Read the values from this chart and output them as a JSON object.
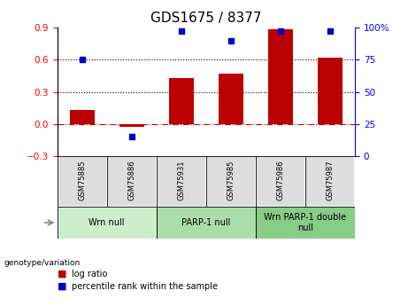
{
  "title": "GDS1675 / 8377",
  "samples": [
    "GSM75885",
    "GSM75886",
    "GSM75931",
    "GSM75985",
    "GSM75986",
    "GSM75987"
  ],
  "log_ratios": [
    0.13,
    -0.03,
    0.43,
    0.47,
    0.88,
    0.62
  ],
  "percentile_ranks": [
    75,
    15,
    97,
    90,
    97,
    97
  ],
  "ylim_left": [
    -0.3,
    0.9
  ],
  "ylim_right": [
    0,
    100
  ],
  "yticks_left": [
    -0.3,
    0.0,
    0.3,
    0.6,
    0.9
  ],
  "yticks_right": [
    0,
    25,
    50,
    75,
    100
  ],
  "bar_color": "#BB0000",
  "dot_color": "#0000CC",
  "zero_line_color": "#CC0000",
  "grid_color": "#000000",
  "groups": [
    {
      "label": "Wrn null",
      "start": 0,
      "end": 2,
      "color": "#CCEECC"
    },
    {
      "label": "PARP-1 null",
      "start": 2,
      "end": 4,
      "color": "#AADDAA"
    },
    {
      "label": "Wrn PARP-1 double\nnull",
      "start": 4,
      "end": 6,
      "color": "#88CC88"
    }
  ],
  "legend_log_ratio_label": "log ratio",
  "legend_percentile_label": "percentile rank within the sample",
  "genotype_label": "genotype/variation",
  "title_fontsize": 11,
  "tick_fontsize": 7.5,
  "group_fontsize": 7.5
}
